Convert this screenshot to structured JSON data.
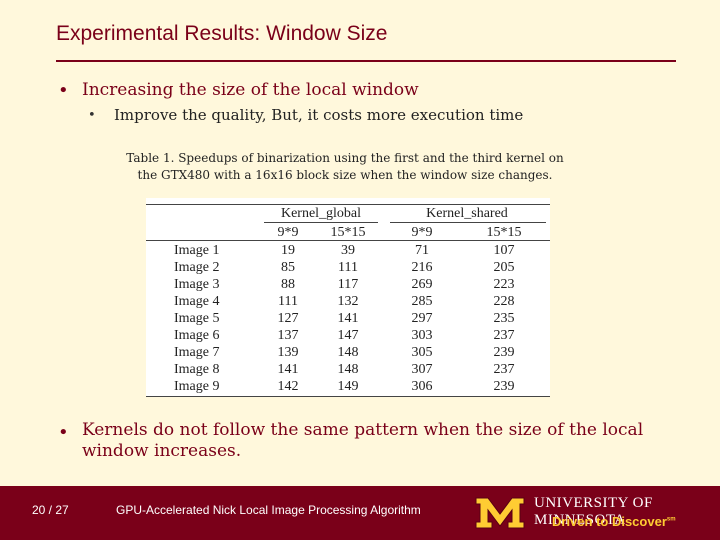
{
  "slide": {
    "title": "Experimental Results: Window Size",
    "bullet1": "Increasing the size of the local window",
    "bullet1_sub": "Improve the quality, But, it costs more execution time",
    "caption_line1": "Table 1. Speedups of binarization using the first and the third kernel on",
    "caption_line2": "the GTX480 with a 16x16 block size when the window size changes.",
    "bullet2": "Kernels do not follow the same pattern when the size of the local window increases."
  },
  "table": {
    "group_headers": [
      "Kernel_global",
      "Kernel_shared"
    ],
    "sub_headers": [
      "9*9",
      "15*15",
      "9*9",
      "15*15"
    ],
    "rows": [
      {
        "label": "Image 1",
        "values": [
          "19",
          "39",
          "71",
          "107"
        ]
      },
      {
        "label": "Image 2",
        "values": [
          "85",
          "111",
          "216",
          "205"
        ]
      },
      {
        "label": "Image 3",
        "values": [
          "88",
          "117",
          "269",
          "223"
        ]
      },
      {
        "label": "Image 4",
        "values": [
          "111",
          "132",
          "285",
          "228"
        ]
      },
      {
        "label": "Image 5",
        "values": [
          "127",
          "141",
          "297",
          "235"
        ]
      },
      {
        "label": "Image 6",
        "values": [
          "137",
          "147",
          "303",
          "237"
        ]
      },
      {
        "label": "Image 7",
        "values": [
          "139",
          "148",
          "305",
          "239"
        ]
      },
      {
        "label": "Image 8",
        "values": [
          "141",
          "148",
          "307",
          "237"
        ]
      },
      {
        "label": "Image 9",
        "values": [
          "142",
          "149",
          "306",
          "239"
        ]
      }
    ]
  },
  "footer": {
    "page": "20 / 27",
    "title": "GPU-Accelerated Nick Local Image Processing Algorithm",
    "university": "UNIVERSITY OF MINNESOTA",
    "tagline": "Driven to Discover",
    "tagline_mark": "sm"
  },
  "colors": {
    "maroon": "#7a0019",
    "gold": "#ffcc33",
    "background": "#fff8dc"
  }
}
